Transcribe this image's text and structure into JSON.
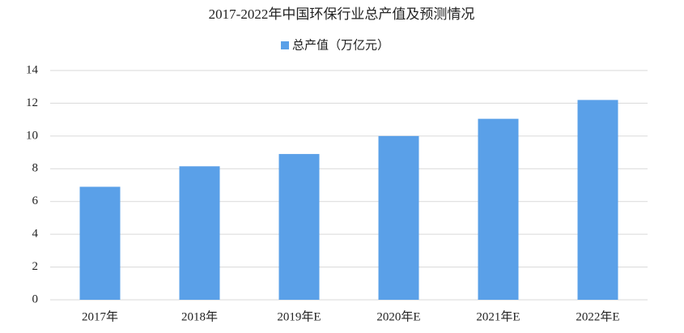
{
  "chart_data": {
    "type": "bar",
    "title": "2017-2022年中国环保行业总产值及预测情况",
    "categories": [
      "2017年",
      "2018年",
      "2019年E",
      "2020年E",
      "2021年E",
      "2022年E"
    ],
    "series": [
      {
        "name": "总产值（万亿元）",
        "color": "#5aa0e8",
        "values": [
          6.9,
          8.15,
          8.9,
          10.0,
          11.05,
          12.2
        ]
      }
    ],
    "ylim": [
      0,
      14
    ],
    "yticks": [
      0,
      2,
      4,
      6,
      8,
      10,
      12,
      14
    ],
    "grid": true,
    "legend": "top"
  }
}
